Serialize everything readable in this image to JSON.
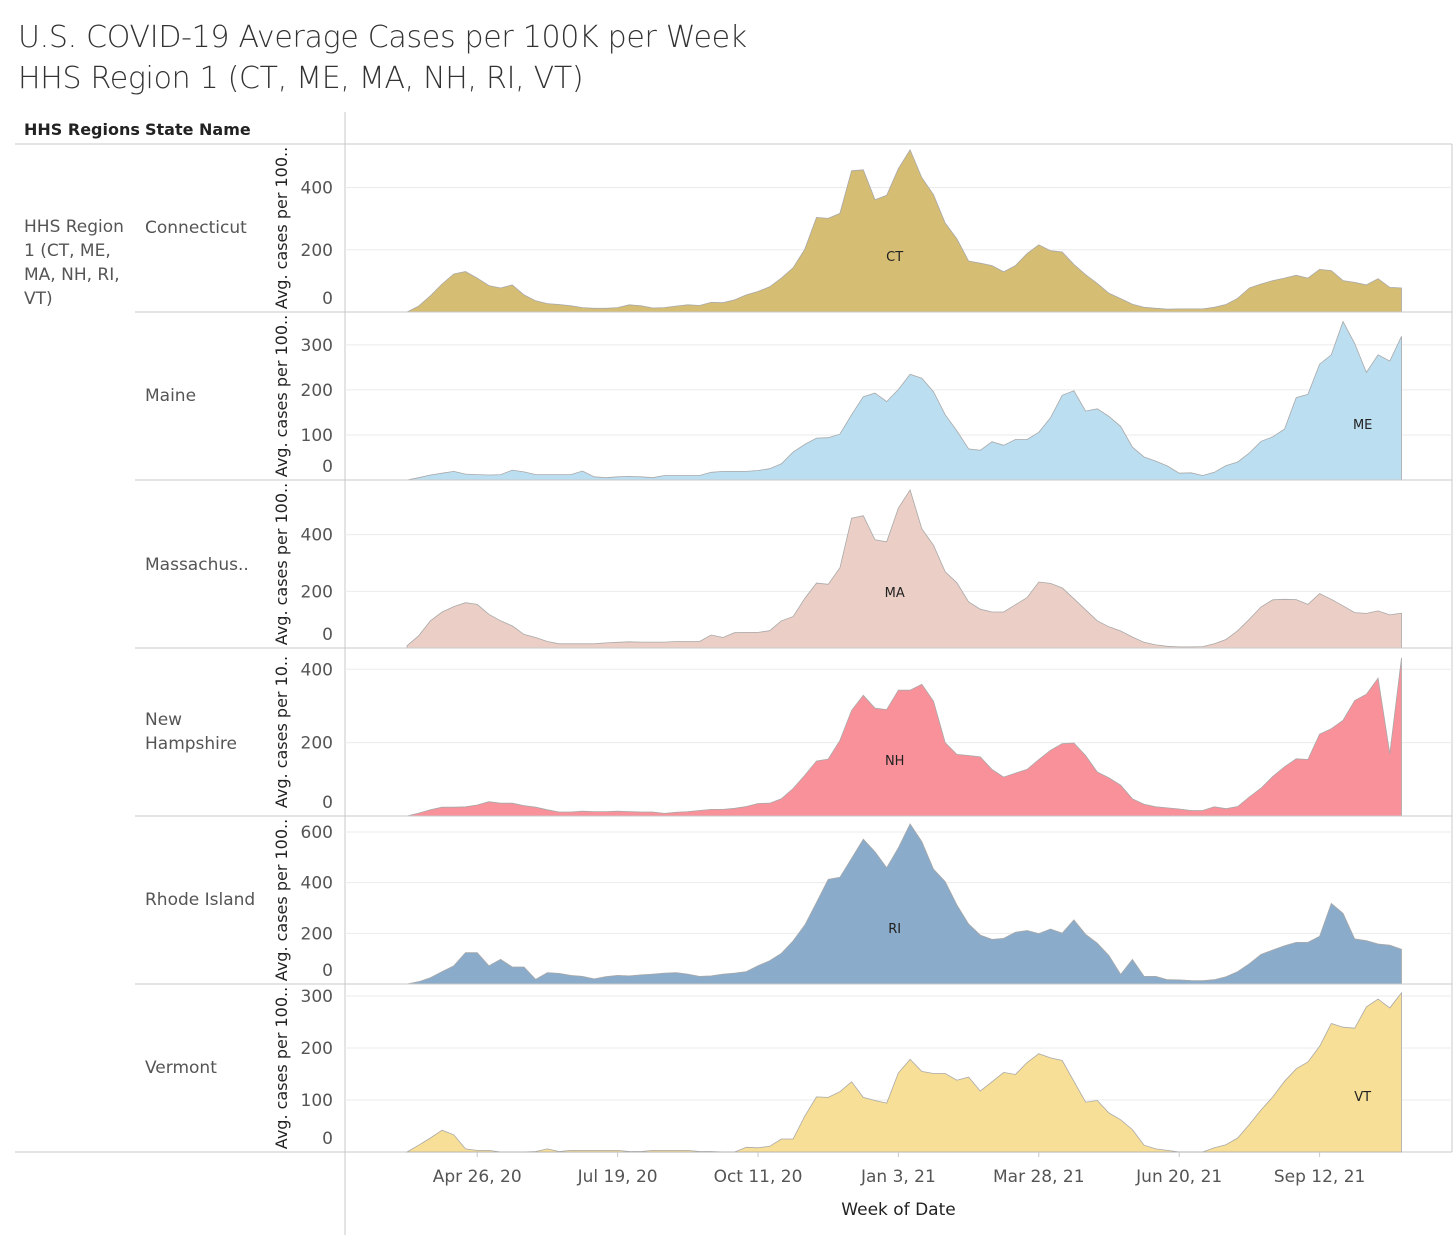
{
  "title": {
    "line1": "U.S. COVID-19 Average Cases per 100K  per Week",
    "line2": "HHS Region 1 (CT, ME, MA, NH, RI, VT)"
  },
  "headers": {
    "region": "HHS Regions",
    "state": "State Name"
  },
  "region_label": "HHS Region 1 (CT, ME, MA, NH, RI, VT)",
  "chart_data": {
    "type": "area",
    "title": "U.S. COVID-19 Average Cases per 100K  per Week",
    "xlabel": "Week of Date",
    "x_start": "2020-03-15",
    "x_interval": "week",
    "x_ticks": [
      {
        "label": "Apr 26, 20",
        "week_index": 6
      },
      {
        "label": "Jul 19, 20",
        "week_index": 18
      },
      {
        "label": "Oct 11, 20",
        "week_index": 30
      },
      {
        "label": "Jan 3, 21",
        "week_index": 42
      },
      {
        "label": "Mar 28, 21",
        "week_index": 54
      },
      {
        "label": "Jun 20, 21",
        "week_index": 66
      },
      {
        "label": "Sep 12, 21",
        "week_index": 78
      }
    ],
    "grid": true,
    "series": [
      {
        "name": "Connecticut",
        "abbr": "CT",
        "ylabel": "Avg. cases per 100..",
        "color": "#d5bd73",
        "ylim": [
          0,
          540
        ],
        "yticks": [
          0,
          200,
          400
        ],
        "label_week": 41,
        "values": [
          0,
          19,
          52,
          90,
          122,
          130,
          109,
          85,
          77,
          87,
          55,
          36,
          27,
          24,
          20,
          14,
          12,
          12,
          14,
          23,
          20,
          13,
          14,
          19,
          23,
          21,
          31,
          30,
          39,
          55,
          66,
          81,
          109,
          142,
          202,
          304,
          301,
          317,
          454,
          457,
          361,
          375,
          461,
          521,
          432,
          377,
          286,
          235,
          164,
          157,
          149,
          129,
          149,
          188,
          216,
          197,
          193,
          153,
          120,
          92,
          60,
          43,
          25,
          15,
          12,
          9,
          10,
          10,
          10,
          15,
          24,
          44,
          77,
          90,
          101,
          109,
          118,
          109,
          137,
          133,
          101,
          95,
          87,
          107,
          79,
          77
        ]
      },
      {
        "name": "Maine",
        "abbr": "ME",
        "ylabel": "Avg. cases per 100..",
        "color": "#bcdef1",
        "ylim": [
          0,
          373
        ],
        "yticks": [
          0,
          100,
          200,
          300
        ],
        "label_week": 81,
        "values": [
          0,
          5,
          11,
          15,
          19,
          13,
          12,
          11,
          12,
          22,
          18,
          12,
          12,
          12,
          12,
          20,
          7,
          5,
          7,
          8,
          7,
          5,
          10,
          10,
          10,
          10,
          17,
          19,
          19,
          19,
          21,
          25,
          36,
          62,
          79,
          93,
          94,
          102,
          145,
          185,
          193,
          174,
          201,
          235,
          226,
          196,
          145,
          109,
          69,
          66,
          85,
          77,
          90,
          90,
          106,
          138,
          188,
          198,
          153,
          158,
          141,
          119,
          73,
          51,
          42,
          31,
          15,
          16,
          10,
          17,
          32,
          40,
          60,
          86,
          96,
          113,
          183,
          190,
          257,
          278,
          352,
          303,
          239,
          278,
          264,
          319
        ]
      },
      {
        "name": "Massachus..",
        "abbr": "MA",
        "ylabel": "Avg. cases per 100..",
        "color": "#ebcfc6",
        "ylim": [
          0,
          593
        ],
        "yticks": [
          0,
          200,
          400
        ],
        "label_week": 41,
        "values": [
          8,
          43,
          96,
          127,
          146,
          160,
          154,
          119,
          96,
          78,
          48,
          37,
          23,
          15,
          15,
          15,
          15,
          18,
          20,
          22,
          21,
          21,
          21,
          23,
          23,
          23,
          46,
          37,
          54,
          55,
          55,
          61,
          96,
          111,
          175,
          229,
          225,
          283,
          458,
          467,
          382,
          375,
          494,
          558,
          421,
          363,
          269,
          230,
          163,
          137,
          127,
          127,
          153,
          178,
          233,
          228,
          212,
          174,
          135,
          96,
          75,
          60,
          39,
          20,
          11,
          6,
          4,
          4,
          5,
          15,
          30,
          61,
          102,
          145,
          170,
          172,
          171,
          154,
          192,
          172,
          149,
          125,
          122,
          131,
          117,
          123
        ]
      },
      {
        "name": "New Hampshire",
        "abbr": "NH",
        "ylabel": "Avg. cases per 10..",
        "color": "#f8919a",
        "ylim": [
          0,
          458
        ],
        "yticks": [
          0,
          200,
          400
        ],
        "label_week": 41,
        "values": [
          0,
          8,
          17,
          24,
          24,
          25,
          30,
          39,
          35,
          35,
          28,
          24,
          17,
          11,
          11,
          13,
          12,
          12,
          13,
          12,
          11,
          11,
          7,
          10,
          12,
          15,
          18,
          18,
          21,
          26,
          34,
          35,
          47,
          75,
          111,
          150,
          155,
          206,
          288,
          329,
          294,
          290,
          343,
          343,
          359,
          313,
          200,
          168,
          165,
          161,
          127,
          106,
          117,
          127,
          154,
          179,
          197,
          199,
          165,
          120,
          104,
          84,
          47,
          32,
          25,
          22,
          19,
          15,
          15,
          25,
          20,
          26,
          52,
          76,
          108,
          134,
          156,
          154,
          223,
          238,
          261,
          315,
          332,
          376,
          170,
          431
        ]
      },
      {
        "name": "Rhode Island",
        "abbr": "RI",
        "ylabel": "Avg. cases per 100..",
        "color": "#8aabca",
        "ylim": [
          0,
          663
        ],
        "yticks": [
          0,
          200,
          400,
          600
        ],
        "label_week": 41,
        "values": [
          0,
          9,
          25,
          49,
          72,
          124,
          124,
          72,
          97,
          67,
          67,
          18,
          45,
          42,
          34,
          30,
          20,
          29,
          34,
          32,
          36,
          39,
          43,
          45,
          39,
          30,
          32,
          39,
          43,
          49,
          72,
          92,
          121,
          170,
          233,
          322,
          413,
          421,
          496,
          572,
          522,
          459,
          538,
          632,
          562,
          453,
          404,
          312,
          237,
          193,
          176,
          180,
          204,
          211,
          199,
          217,
          201,
          253,
          196,
          161,
          112,
          38,
          97,
          30,
          30,
          17,
          16,
          14,
          13,
          17,
          29,
          49,
          80,
          117,
          134,
          151,
          164,
          164,
          188,
          318,
          279,
          178,
          171,
          158,
          153,
          137
        ]
      },
      {
        "name": "Vermont",
        "abbr": "VT",
        "ylabel": "Avg. cases per 100..",
        "color": "#f8df97",
        "ylim": [
          0,
          323
        ],
        "yticks": [
          0,
          100,
          200,
          300
        ],
        "label_week": 81,
        "values": [
          0,
          13,
          27,
          42,
          33,
          6,
          3,
          3,
          0,
          0,
          0,
          1,
          6,
          1,
          3,
          3,
          3,
          3,
          3,
          1,
          1,
          3,
          3,
          3,
          3,
          1,
          1,
          0,
          0,
          9,
          8,
          11,
          25,
          25,
          69,
          106,
          105,
          116,
          135,
          105,
          99,
          94,
          152,
          178,
          155,
          151,
          151,
          138,
          144,
          117,
          135,
          153,
          149,
          172,
          189,
          181,
          176,
          136,
          96,
          99,
          75,
          62,
          43,
          13,
          6,
          3,
          0,
          0,
          0,
          8,
          14,
          27,
          53,
          81,
          106,
          136,
          160,
          173,
          203,
          247,
          240,
          238,
          279,
          294,
          277,
          306
        ]
      }
    ]
  }
}
